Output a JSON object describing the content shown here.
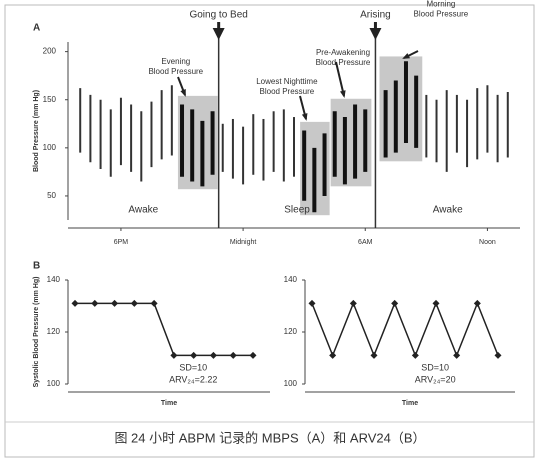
{
  "caption": "图  24 小时 ABPM 记录的 MBPS（A）和 ARV24（B）",
  "chart_data": [
    {
      "type": "range",
      "panel": "A",
      "ylabel": "Blood Pressure (mm Hg)",
      "x": [
        16.0,
        16.5,
        17.0,
        17.5,
        18.0,
        18.5,
        19.0,
        19.5,
        20.0,
        20.5,
        21.0,
        21.5,
        22.0,
        22.5,
        23.0,
        23.5,
        24.0,
        24.5,
        25.0,
        25.5,
        26.0,
        26.5,
        27.0,
        27.5,
        28.0,
        28.5,
        29.0,
        29.5,
        30.0,
        31.0,
        31.5,
        32.0,
        32.5,
        33.0,
        33.5,
        34.0,
        34.5,
        35.0,
        35.5,
        36.0,
        36.5,
        37.0
      ],
      "low": [
        95,
        85,
        78,
        70,
        82,
        75,
        65,
        80,
        88,
        92,
        70,
        65,
        60,
        72,
        75,
        68,
        62,
        72,
        66,
        75,
        65,
        70,
        45,
        33,
        50,
        70,
        62,
        68,
        75,
        90,
        95,
        105,
        100,
        90,
        85,
        75,
        95,
        80,
        88,
        95,
        85,
        90
      ],
      "high": [
        162,
        155,
        150,
        140,
        152,
        145,
        138,
        148,
        160,
        165,
        145,
        140,
        128,
        138,
        125,
        130,
        122,
        135,
        130,
        138,
        140,
        132,
        118,
        100,
        115,
        138,
        132,
        145,
        140,
        160,
        170,
        190,
        175,
        155,
        150,
        160,
        155,
        150,
        162,
        165,
        155,
        158
      ],
      "color": "#333333",
      "box_color": "#c8c8c8",
      "xlim": [
        15.4,
        37.6
      ],
      "xticks": [
        {
          "value": 18,
          "label": "6PM"
        },
        {
          "value": 24,
          "label": "Midnight"
        },
        {
          "value": 30,
          "label": "6AM"
        },
        {
          "value": 36,
          "label": "Noon"
        }
      ],
      "ylim": [
        25,
        210
      ],
      "yticks": [
        50,
        100,
        150,
        200
      ],
      "markers": [
        {
          "x": 22.8,
          "label": "Going to Bed"
        },
        {
          "x": 30.5,
          "label": "Arising"
        }
      ],
      "region_labels": [
        "Awake",
        "Sleep",
        "Awake"
      ],
      "highlights": [
        {
          "xlim": [
            20.8,
            22.75
          ],
          "ylim": [
            57,
            154
          ],
          "label": [
            "Evening",
            "Blood Pressure"
          ]
        },
        {
          "xlim": [
            26.8,
            28.25
          ],
          "ylim": [
            30,
            127
          ],
          "label": [
            "Lowest Nighttime",
            "Blood Pressure"
          ]
        },
        {
          "xlim": [
            28.3,
            30.3
          ],
          "ylim": [
            60,
            151
          ],
          "label": [
            "Pre-Awakening",
            "Blood Pressure"
          ]
        },
        {
          "xlim": [
            30.7,
            32.8
          ],
          "ylim": [
            86,
            195
          ],
          "label": [
            "Morning",
            "Blood Pressure"
          ]
        }
      ]
    },
    {
      "type": "line",
      "panel": "B",
      "ylabel": "Systolic Blood Pressure (mm Hg)",
      "xlabel": "Time",
      "values": [
        131,
        131,
        131,
        131,
        131,
        111,
        111,
        111,
        111,
        111
      ],
      "color": "#222222",
      "ylim": [
        100,
        140
      ],
      "yticks": [
        100,
        120,
        140
      ],
      "notes": [
        "SD=10",
        "ARV₂₄=2.22"
      ]
    },
    {
      "type": "line",
      "xlabel": "Time",
      "values": [
        131,
        111,
        131,
        111,
        131,
        111,
        131,
        111,
        131,
        111
      ],
      "color": "#222222",
      "ylim": [
        100,
        140
      ],
      "yticks": [
        100,
        120,
        140
      ],
      "notes": [
        "SD=10",
        "ARV₂₄=20"
      ]
    }
  ]
}
